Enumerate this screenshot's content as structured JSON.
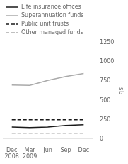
{
  "chart_data": {
    "type": "line",
    "categories": [
      "Dec\n2008",
      "Mar\n2009",
      "Jun",
      "Sep",
      "Dec"
    ],
    "series": [
      {
        "name": "Life insurance offices",
        "color": "#1a1a1a",
        "line_style": "solid",
        "values": [
          155,
          148,
          155,
          175,
          185
        ]
      },
      {
        "name": "Superannuation funds",
        "color": "#aaaaaa",
        "line_style": "solid",
        "values": [
          700,
          695,
          760,
          810,
          850
        ]
      },
      {
        "name": "Public unit trusts",
        "color": "#1a1a1a",
        "line_style": "dashed",
        "values": [
          250,
          250,
          250,
          250,
          250
        ]
      },
      {
        "name": "Other managed funds",
        "color": "#aaaaaa",
        "line_style": "dashed",
        "values": [
          75,
          75,
          75,
          75,
          75
        ]
      }
    ],
    "ylabel": "$b",
    "ylim": [
      0,
      1250
    ],
    "yticks": [
      0,
      250,
      500,
      750,
      1000,
      1250
    ],
    "grid": false,
    "legend": "upper left"
  }
}
